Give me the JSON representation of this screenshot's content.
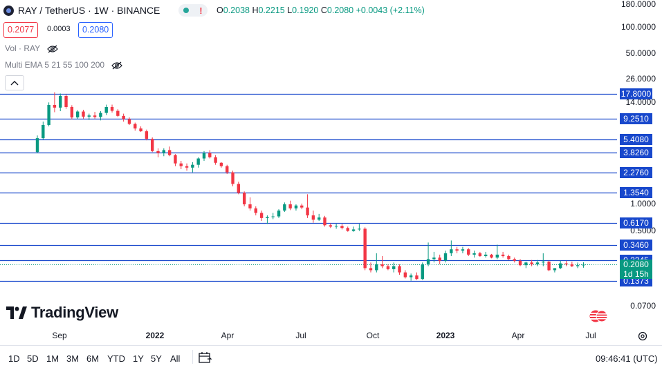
{
  "header": {
    "title": "RAY / TetherUS · 1W · BINANCE",
    "ohlc": {
      "o_key": "O",
      "o": "0.2038",
      "h_key": "H",
      "h": "0.2215",
      "l_key": "L",
      "l": "0.1920",
      "c_key": "C",
      "c": "0.2080",
      "change": "+0.0043 (+2.11%)"
    },
    "sell_price": "0.2077",
    "spread": "0.0003",
    "buy_price": "0.2080"
  },
  "indicators": [
    {
      "label": "Vol · RAY"
    },
    {
      "label": "Multi EMA 5 21 55 100 200"
    }
  ],
  "brand": {
    "name": "TradingView"
  },
  "price_axis": {
    "ticks": [
      {
        "label": "180.0000",
        "value": 180
      },
      {
        "label": "100.0000",
        "value": 100
      },
      {
        "label": "50.0000",
        "value": 50
      },
      {
        "label": "26.0000",
        "value": 26
      },
      {
        "label": "14.0000",
        "value": 14
      },
      {
        "label": "1.0000",
        "value": 1.0
      },
      {
        "label": "0.5000",
        "value": 0.5
      },
      {
        "label": "0.0700",
        "value": 0.07
      }
    ],
    "levels": [
      {
        "label": "17.8000",
        "value": 17.8
      },
      {
        "label": "9.2510",
        "value": 9.251
      },
      {
        "label": "5.4080",
        "value": 5.408
      },
      {
        "label": "3.8260",
        "value": 3.826
      },
      {
        "label": "2.2760",
        "value": 2.276
      },
      {
        "label": "1.3540",
        "value": 1.354
      },
      {
        "label": "0.6170",
        "value": 0.617
      },
      {
        "label": "0.3460",
        "value": 0.346
      },
      {
        "label": "0.2345",
        "value": 0.2345
      },
      {
        "label": "0.1373",
        "value": 0.1373
      }
    ],
    "current_price": "0.2080",
    "countdown": "1d 15h"
  },
  "time_axis": {
    "labels": [
      {
        "label": "Sep",
        "bold": false
      },
      {
        "label": "2022",
        "bold": true
      },
      {
        "label": "Apr",
        "bold": false
      },
      {
        "label": "Jul",
        "bold": false
      },
      {
        "label": "Oct",
        "bold": false
      },
      {
        "label": "2023",
        "bold": true
      },
      {
        "label": "Apr",
        "bold": false
      },
      {
        "label": "Jul",
        "bold": false
      }
    ]
  },
  "ranges": [
    "1D",
    "5D",
    "1M",
    "3M",
    "6M",
    "YTD",
    "1Y",
    "5Y",
    "All"
  ],
  "clock": "09:46:41 (UTC)",
  "colors": {
    "up": "#089981",
    "down": "#f23645",
    "level_line": "#1848cc",
    "level_label_bg": "#1848cc"
  },
  "chart_data": {
    "type": "candlestick",
    "title": "RAY / TetherUS · 1W · BINANCE",
    "scale": "log",
    "ylim": [
      0.06,
      190
    ],
    "xlabel": "",
    "ylabel": "",
    "x_tick_labels": [
      "Sep",
      "2022",
      "Apr",
      "Jul",
      "Oct",
      "2023",
      "Apr",
      "Jul"
    ],
    "horizontal_levels": [
      17.8,
      9.251,
      5.408,
      3.826,
      2.276,
      1.354,
      0.617,
      0.346,
      0.2345,
      0.1373
    ],
    "candles": [
      [
        3.9,
        6.0,
        3.8,
        5.6
      ],
      [
        5.6,
        8.6,
        5.4,
        7.9
      ],
      [
        7.9,
        14.2,
        7.6,
        13.3
      ],
      [
        13.3,
        18.5,
        11.0,
        12.4
      ],
      [
        12.4,
        17.9,
        11.3,
        16.8
      ],
      [
        16.8,
        17.4,
        12.0,
        12.6
      ],
      [
        12.6,
        13.2,
        9.1,
        9.6
      ],
      [
        9.6,
        11.6,
        9.2,
        11.2
      ],
      [
        11.2,
        11.7,
        9.3,
        9.8
      ],
      [
        9.8,
        10.6,
        9.0,
        10.1
      ],
      [
        10.1,
        11.1,
        9.3,
        9.7
      ],
      [
        9.7,
        11.3,
        8.9,
        10.8
      ],
      [
        10.8,
        13.4,
        10.2,
        12.6
      ],
      [
        12.6,
        13.4,
        10.9,
        11.4
      ],
      [
        11.4,
        11.9,
        9.7,
        10.0
      ],
      [
        10.0,
        10.6,
        8.6,
        9.2
      ],
      [
        9.2,
        9.6,
        7.9,
        8.1
      ],
      [
        8.1,
        8.4,
        6.8,
        7.2
      ],
      [
        7.2,
        7.6,
        6.6,
        6.7
      ],
      [
        6.7,
        7.0,
        5.3,
        5.5
      ],
      [
        5.5,
        5.7,
        3.9,
        4.0
      ],
      [
        4.0,
        4.3,
        3.4,
        3.8
      ],
      [
        3.8,
        4.3,
        3.5,
        4.1
      ],
      [
        4.1,
        4.5,
        3.5,
        3.6
      ],
      [
        3.6,
        3.7,
        2.7,
        2.9
      ],
      [
        2.9,
        3.1,
        2.5,
        2.7
      ],
      [
        2.7,
        2.9,
        2.4,
        2.6
      ],
      [
        2.6,
        3.0,
        2.3,
        2.8
      ],
      [
        2.8,
        3.4,
        2.6,
        3.3
      ],
      [
        3.3,
        4.0,
        3.1,
        3.8
      ],
      [
        3.8,
        4.1,
        3.3,
        3.4
      ],
      [
        3.4,
        3.6,
        2.8,
        2.95
      ],
      [
        2.95,
        3.0,
        2.6,
        2.7
      ],
      [
        2.7,
        2.8,
        2.2,
        2.3
      ],
      [
        2.3,
        2.4,
        1.6,
        1.7
      ],
      [
        1.7,
        1.8,
        1.3,
        1.35
      ],
      [
        1.35,
        1.4,
        0.95,
        1.0
      ],
      [
        1.0,
        1.2,
        0.85,
        0.9
      ],
      [
        0.9,
        0.95,
        0.75,
        0.8
      ],
      [
        0.8,
        0.85,
        0.65,
        0.7
      ],
      [
        0.7,
        0.75,
        0.6,
        0.72
      ],
      [
        0.72,
        0.8,
        0.68,
        0.73
      ],
      [
        0.73,
        0.88,
        0.7,
        0.85
      ],
      [
        0.85,
        1.05,
        0.82,
        1.0
      ],
      [
        1.0,
        1.1,
        0.86,
        0.9
      ],
      [
        0.9,
        1.0,
        0.85,
        0.97
      ],
      [
        0.97,
        1.02,
        0.88,
        0.92
      ],
      [
        0.92,
        1.3,
        0.7,
        0.75
      ],
      [
        0.75,
        0.85,
        0.62,
        0.67
      ],
      [
        0.67,
        0.78,
        0.65,
        0.71
      ],
      [
        0.71,
        0.74,
        0.56,
        0.58
      ],
      [
        0.58,
        0.61,
        0.54,
        0.56
      ],
      [
        0.56,
        0.6,
        0.53,
        0.57
      ],
      [
        0.57,
        0.6,
        0.52,
        0.54
      ],
      [
        0.54,
        0.56,
        0.49,
        0.5
      ],
      [
        0.5,
        0.56,
        0.49,
        0.52
      ],
      [
        0.52,
        0.6,
        0.5,
        0.53
      ],
      [
        0.53,
        0.55,
        0.18,
        0.19
      ],
      [
        0.19,
        0.22,
        0.17,
        0.18
      ],
      [
        0.18,
        0.28,
        0.17,
        0.21
      ],
      [
        0.21,
        0.26,
        0.19,
        0.2
      ],
      [
        0.2,
        0.21,
        0.18,
        0.185
      ],
      [
        0.185,
        0.22,
        0.17,
        0.2
      ],
      [
        0.2,
        0.21,
        0.16,
        0.17
      ],
      [
        0.17,
        0.18,
        0.145,
        0.15
      ],
      [
        0.15,
        0.165,
        0.137,
        0.157
      ],
      [
        0.157,
        0.17,
        0.14,
        0.143
      ],
      [
        0.143,
        0.22,
        0.14,
        0.21
      ],
      [
        0.21,
        0.37,
        0.2,
        0.24
      ],
      [
        0.24,
        0.29,
        0.22,
        0.25
      ],
      [
        0.25,
        0.27,
        0.21,
        0.23
      ],
      [
        0.23,
        0.3,
        0.22,
        0.28
      ],
      [
        0.28,
        0.39,
        0.26,
        0.31
      ],
      [
        0.31,
        0.33,
        0.28,
        0.3
      ],
      [
        0.3,
        0.33,
        0.28,
        0.31
      ],
      [
        0.31,
        0.32,
        0.26,
        0.27
      ],
      [
        0.27,
        0.3,
        0.25,
        0.28
      ],
      [
        0.28,
        0.29,
        0.255,
        0.26
      ],
      [
        0.26,
        0.29,
        0.25,
        0.27
      ],
      [
        0.27,
        0.275,
        0.245,
        0.25
      ],
      [
        0.25,
        0.35,
        0.24,
        0.27
      ],
      [
        0.27,
        0.29,
        0.25,
        0.26
      ],
      [
        0.26,
        0.27,
        0.235,
        0.24
      ],
      [
        0.24,
        0.25,
        0.22,
        0.23
      ],
      [
        0.23,
        0.24,
        0.2,
        0.205
      ],
      [
        0.205,
        0.225,
        0.19,
        0.22
      ],
      [
        0.22,
        0.235,
        0.2,
        0.21
      ],
      [
        0.21,
        0.235,
        0.2,
        0.22
      ],
      [
        0.22,
        0.28,
        0.2,
        0.225
      ],
      [
        0.225,
        0.23,
        0.175,
        0.18
      ],
      [
        0.18,
        0.19,
        0.17,
        0.19
      ],
      [
        0.19,
        0.23,
        0.185,
        0.215
      ],
      [
        0.215,
        0.23,
        0.2,
        0.21
      ],
      [
        0.21,
        0.225,
        0.195,
        0.2
      ],
      [
        0.2,
        0.22,
        0.19,
        0.205
      ],
      [
        0.204,
        0.2215,
        0.192,
        0.208
      ]
    ]
  }
}
